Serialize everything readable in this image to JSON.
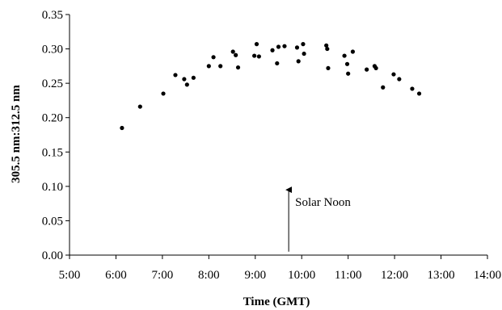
{
  "chart_data": {
    "type": "scatter",
    "title": "",
    "xlabel": "Time (GMT)",
    "ylabel": "305.5 nm:312.5 nm",
    "x_unit": "hours (GMT)",
    "xlim": [
      5,
      14
    ],
    "ylim": [
      0,
      0.35
    ],
    "x_tick_values": [
      5,
      6,
      7,
      8,
      9,
      10,
      11,
      12,
      13,
      14
    ],
    "x_tick_labels": [
      "5:00",
      "6:00",
      "7:00",
      "8:00",
      "9:00",
      "10:00",
      "11:00",
      "12:00",
      "13:00",
      "14:00"
    ],
    "y_tick_values": [
      0,
      0.05,
      0.1,
      0.15,
      0.2,
      0.25,
      0.3,
      0.35
    ],
    "y_tick_labels": [
      "0.00",
      "0.05",
      "0.10",
      "0.15",
      "0.20",
      "0.25",
      "0.30",
      "0.35"
    ],
    "grid": false,
    "legend": "none",
    "marker_color": "#000000",
    "points": [
      {
        "x": 6.13,
        "y": 0.185
      },
      {
        "x": 6.52,
        "y": 0.216
      },
      {
        "x": 7.02,
        "y": 0.235
      },
      {
        "x": 7.28,
        "y": 0.262
      },
      {
        "x": 7.47,
        "y": 0.256
      },
      {
        "x": 7.53,
        "y": 0.248
      },
      {
        "x": 7.67,
        "y": 0.258
      },
      {
        "x": 8.0,
        "y": 0.275
      },
      {
        "x": 8.1,
        "y": 0.288
      },
      {
        "x": 8.25,
        "y": 0.275
      },
      {
        "x": 8.52,
        "y": 0.296
      },
      {
        "x": 8.58,
        "y": 0.291
      },
      {
        "x": 8.63,
        "y": 0.273
      },
      {
        "x": 8.98,
        "y": 0.29
      },
      {
        "x": 9.03,
        "y": 0.307
      },
      {
        "x": 9.08,
        "y": 0.289
      },
      {
        "x": 9.37,
        "y": 0.298
      },
      {
        "x": 9.47,
        "y": 0.279
      },
      {
        "x": 9.5,
        "y": 0.303
      },
      {
        "x": 9.63,
        "y": 0.304
      },
      {
        "x": 9.9,
        "y": 0.302
      },
      {
        "x": 9.93,
        "y": 0.282
      },
      {
        "x": 10.03,
        "y": 0.307
      },
      {
        "x": 10.05,
        "y": 0.293
      },
      {
        "x": 10.53,
        "y": 0.305
      },
      {
        "x": 10.55,
        "y": 0.3
      },
      {
        "x": 10.57,
        "y": 0.272
      },
      {
        "x": 10.92,
        "y": 0.29
      },
      {
        "x": 10.98,
        "y": 0.278
      },
      {
        "x": 11.0,
        "y": 0.264
      },
      {
        "x": 11.1,
        "y": 0.296
      },
      {
        "x": 11.4,
        "y": 0.27
      },
      {
        "x": 11.57,
        "y": 0.275
      },
      {
        "x": 11.6,
        "y": 0.272
      },
      {
        "x": 11.75,
        "y": 0.244
      },
      {
        "x": 11.98,
        "y": 0.263
      },
      {
        "x": 12.1,
        "y": 0.256
      },
      {
        "x": 12.38,
        "y": 0.242
      },
      {
        "x": 12.53,
        "y": 0.235
      }
    ],
    "annotations": [
      {
        "text": "Solar Noon",
        "arrow_x": 9.72,
        "arrow_from_y": 0.005,
        "arrow_to_y": 0.095
      }
    ]
  }
}
